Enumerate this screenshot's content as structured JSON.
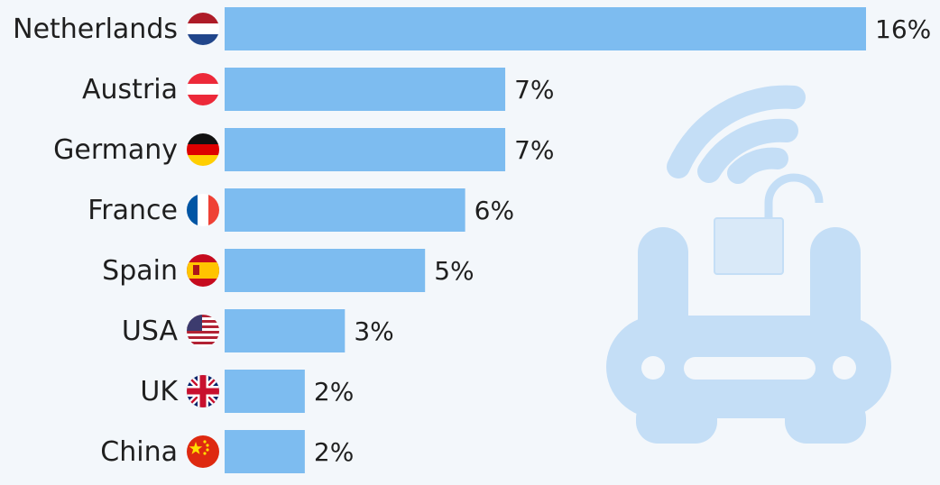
{
  "chart_data": {
    "type": "bar",
    "orientation": "horizontal",
    "categories": [
      "Netherlands",
      "Austria",
      "Germany",
      "France",
      "Spain",
      "USA",
      "UK",
      "China"
    ],
    "values": [
      16,
      7,
      7,
      6,
      5,
      3,
      2,
      2
    ],
    "value_labels": [
      "16%",
      "7%",
      "7%",
      "6%",
      "5%",
      "3%",
      "2%",
      "2%"
    ],
    "unit": "%",
    "xlim": [
      0,
      16
    ],
    "grid": false,
    "legend": "none",
    "flags": [
      "netherlands-flag-icon",
      "austria-flag-icon",
      "germany-flag-icon",
      "france-flag-icon",
      "spain-flag-icon",
      "usa-flag-icon",
      "uk-flag-icon",
      "china-flag-icon"
    ],
    "colors": {
      "bar": "#7dbcf0",
      "background": "#f3f7fb",
      "illustration": "#c4def6",
      "illustration_light": "#d9e9f8"
    }
  },
  "decoration": {
    "illustration": "router-with-open-padlock-icon"
  }
}
